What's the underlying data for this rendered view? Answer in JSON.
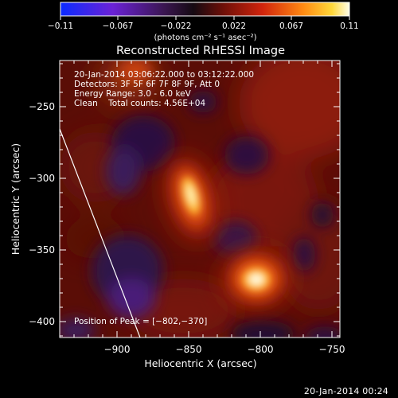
{
  "colorbar": {
    "ticks": [
      "−0.11",
      "−0.067",
      "−0.022",
      "0.022",
      "0.067",
      "0.11"
    ],
    "unit_label": "(photons cm⁻² s⁻¹ asec⁻²)"
  },
  "title": "Reconstructed RHESSI Image",
  "info": {
    "time_range": "20-Jan-2014 03:06:22.000 to 03:12:22.000",
    "detectors": "Detectors: 3F 5F 6F 7F 8F 9F, Att 0",
    "energy": "Energy Range: 3.0 - 6.0 keV",
    "clean": "Clean    Total counts: 4.56E+04",
    "peak": "Position of Peak = [−802,−370]"
  },
  "axes": {
    "xlabel": "Heliocentric X (arcsec)",
    "ylabel": "Heliocentric Y (arcsec)",
    "xticks": [
      "−900",
      "−850",
      "−800",
      "−750"
    ],
    "yticks": [
      "−250",
      "−300",
      "−350",
      "−400"
    ]
  },
  "footer": "20-Jan-2014 00:24",
  "colors": {
    "background": "#000000",
    "peak_hot": "#fffbe0",
    "limb_line": "#ffffff"
  }
}
